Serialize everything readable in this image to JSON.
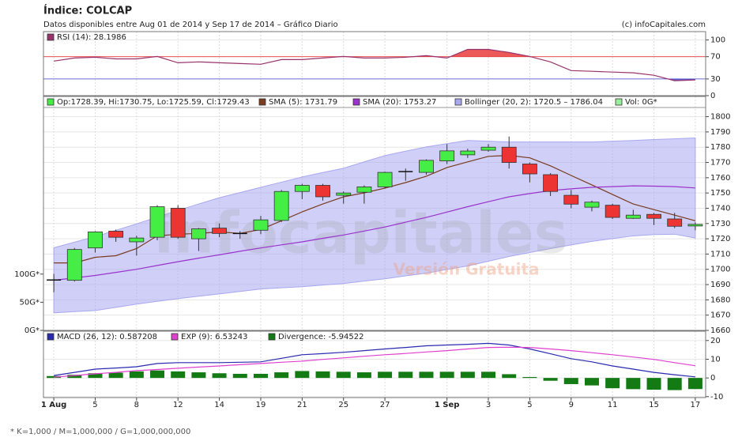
{
  "header": {
    "title": "Índice: COLCAP",
    "subtitle": "Datos disponibles entre Aug 01 de 2014 y Sep 17 de 2014 – Gráfico Diario",
    "source": "(c) infoCapitales.com"
  },
  "watermark": {
    "brand": "infocapitales",
    "note": "Versión Gratuita"
  },
  "footnote": "* K=1,000 / M=1,000,000 / G=1,000,000,000",
  "chart_data": [
    {
      "type": "line",
      "ylim": [
        0,
        115
      ],
      "yticks": [
        0,
        30,
        70,
        100
      ],
      "levels": [
        {
          "value": 70,
          "color": "#e83c3c"
        },
        {
          "value": 30,
          "color": "#4848c8"
        }
      ],
      "series": [
        {
          "name": "RSI (14): 28.1986",
          "type": "line",
          "color": "#99336b",
          "values": [
            62,
            67.6,
            69,
            66,
            66,
            70.4,
            59,
            60.6,
            59,
            57.7,
            56.3,
            64.8,
            64.8,
            67.6,
            70.4,
            67.6,
            67.6,
            69,
            71.8,
            67.6,
            83,
            83,
            77.5,
            70.4,
            60.6,
            45,
            43.7,
            42.3,
            41,
            36.6,
            26.8,
            28.1986
          ]
        }
      ]
    },
    {
      "type": "candlestick",
      "ylim": [
        1660,
        1806
      ],
      "yticks": [
        1660,
        1670,
        1680,
        1690,
        1700,
        1710,
        1720,
        1730,
        1740,
        1750,
        1760,
        1770,
        1780,
        1790,
        1800
      ],
      "y2lim": [
        0,
        396
      ],
      "y2ticks": [
        {
          "value": 0,
          "label": "0G*"
        },
        {
          "value": 50,
          "label": "50G*"
        },
        {
          "value": 100,
          "label": "100G*"
        }
      ],
      "series": [
        {
          "name": "Op:1728.39, Hi:1730.75, Lo:1725.59, Cl:1729.43",
          "type": "candlestick",
          "color": "#44ee44",
          "down_color": "#ee3333",
          "open": [
            1693,
            1692.8,
            1714,
            1725,
            1718,
            1721,
            1740,
            1720,
            1727,
            1723.5,
            1725.6,
            1732,
            1751,
            1755,
            1748.5,
            1750.5,
            1754,
            1764,
            1763.5,
            1771,
            1775,
            1778,
            1780,
            1769,
            1762,
            1748.5,
            1740.7,
            1742,
            1733.4,
            1736,
            1733,
            1728.39
          ],
          "high": [
            1697,
            1714,
            1725,
            1726,
            1722,
            1742,
            1742,
            1727,
            1730,
            1725,
            1735,
            1752,
            1756,
            1756,
            1751,
            1755,
            1764,
            1766,
            1772,
            1782,
            1779,
            1782,
            1787,
            1770,
            1763,
            1752,
            1745,
            1743,
            1739,
            1737,
            1737,
            1730.75
          ],
          "low": [
            1685,
            1692,
            1711,
            1718,
            1709,
            1719,
            1720,
            1712,
            1721,
            1720,
            1723,
            1731,
            1746,
            1745,
            1743,
            1743,
            1753,
            1758,
            1762,
            1769,
            1773,
            1777,
            1766,
            1757,
            1748,
            1740,
            1738,
            1733,
            1733,
            1729,
            1727,
            1725.59
          ],
          "close": [
            1693,
            1713,
            1724.5,
            1721,
            1720.5,
            1741,
            1721,
            1726.5,
            1723.5,
            1723.5,
            1732.4,
            1751,
            1755,
            1747.5,
            1750,
            1754,
            1763.5,
            1764,
            1771.4,
            1777.6,
            1777.5,
            1780,
            1770,
            1762.5,
            1751,
            1742.7,
            1744,
            1734,
            1735.5,
            1733.4,
            1728.2,
            1729.43
          ]
        },
        {
          "name": "SMA (5): 1731.79",
          "type": "line",
          "color": "#7a3b1e",
          "values": [
            1704.2,
            1704.2,
            1707.9,
            1708.9,
            1713.6,
            1721.9,
            1723,
            1723.5,
            1724.5,
            1723.5,
            1726.1,
            1731.8,
            1737.6,
            1742.8,
            1747.5,
            1750.1,
            1753.2,
            1756.8,
            1761,
            1766.7,
            1770.4,
            1774,
            1774.6,
            1773,
            1767.8,
            1761.5,
            1755.3,
            1749,
            1742.8,
            1739.1,
            1735.5,
            1731.79
          ]
        },
        {
          "name": "SMA (20): 1753.27",
          "type": "line",
          "color": "#9a33cc",
          "values": [
            1692.8,
            1694.4,
            1696,
            1698,
            1700,
            1702.5,
            1705,
            1707.3,
            1709.5,
            1711.8,
            1714,
            1716,
            1718,
            1720.3,
            1722.5,
            1725.1,
            1727.7,
            1730.9,
            1734,
            1737.5,
            1741,
            1744.3,
            1747.5,
            1749.6,
            1751.6,
            1752.7,
            1753.7,
            1754.2,
            1754.7,
            1754.5,
            1754.2,
            1753.27
          ]
        },
        {
          "name": "Bollinger (20, 2): 1720.5 – 1786.04",
          "type": "band",
          "color": "#a8a8f0",
          "upper": [
            1714.1,
            1717.8,
            1721.4,
            1725.6,
            1729.8,
            1734.2,
            1738.6,
            1742.8,
            1746.9,
            1750.3,
            1753.7,
            1757.1,
            1760.5,
            1763.4,
            1766.2,
            1770.4,
            1774.5,
            1777.4,
            1780.2,
            1782.3,
            1784.4,
            1783.9,
            1783.4,
            1783.4,
            1783.4,
            1783.4,
            1783.4,
            1783.9,
            1784.4,
            1785,
            1785.5,
            1786.04
          ],
          "lower": [
            1671.5,
            1672.3,
            1673,
            1675.1,
            1677.2,
            1679,
            1680.8,
            1682.4,
            1683.9,
            1685.5,
            1687.1,
            1687.9,
            1688.6,
            1689.7,
            1690.7,
            1692.3,
            1693.8,
            1695.7,
            1697.5,
            1699.9,
            1702.2,
            1705.3,
            1708.4,
            1711,
            1713.6,
            1716,
            1718.3,
            1720.1,
            1721.9,
            1722.8,
            1723,
            1720.5
          ]
        },
        {
          "name": "Vol: 0G*",
          "type": "bar",
          "color": "#99ee99",
          "axis": "y2"
        }
      ]
    },
    {
      "type": "line",
      "ylim": [
        -10.5,
        25
      ],
      "yticks": [
        -10,
        0,
        10,
        20
      ],
      "categories": [
        "1 Aug",
        null,
        "5",
        null,
        "8",
        null,
        "12",
        null,
        "14",
        null,
        "19",
        null,
        "21",
        null,
        "25",
        null,
        "27",
        null,
        null,
        "1 Sep",
        null,
        "3",
        null,
        "5",
        null,
        "9",
        null,
        "11",
        null,
        "15",
        null,
        "17"
      ],
      "series": [
        {
          "name": "MACD (26, 12): 0.587208",
          "type": "line",
          "color": "#2a2ab0",
          "values": [
            1.3,
            3.0,
            4.7,
            5.3,
            6.0,
            7.7,
            8.2,
            8.2,
            8.2,
            8.4,
            8.6,
            10.5,
            12.4,
            13.0,
            13.7,
            14.6,
            15.5,
            16.3,
            17.2,
            17.6,
            18.0,
            18.5,
            17.6,
            15.5,
            12.9,
            10.3,
            8.6,
            6.4,
            4.7,
            3.0,
            1.7,
            0.587208
          ]
        },
        {
          "name": "EXP (9): 6.53243",
          "type": "line",
          "color": "#e040d0",
          "values": [
            0.4,
            1.3,
            2.2,
            3.0,
            3.9,
            4.5,
            5.2,
            5.8,
            6.4,
            7.1,
            7.7,
            8.4,
            9.0,
            9.9,
            10.7,
            11.6,
            12.4,
            13.1,
            13.9,
            14.6,
            15.5,
            16.3,
            16.4,
            16.3,
            15.5,
            14.6,
            13.5,
            12.4,
            11.2,
            9.9,
            8.2,
            6.53243
          ]
        },
        {
          "name": "Divergence: -5.94522",
          "type": "bar",
          "color": "#147a14",
          "values": [
            1,
            1.7,
            2.5,
            2.8,
            3.5,
            4,
            3.5,
            3,
            2.5,
            2.2,
            2.2,
            3,
            3.7,
            3.5,
            3.3,
            3,
            3.3,
            3.3,
            3.3,
            3.3,
            3.3,
            3.3,
            2,
            0.5,
            -1.5,
            -3.3,
            -4,
            -5.5,
            -6,
            -6.3,
            -6.5,
            -5.94522
          ]
        }
      ]
    }
  ]
}
